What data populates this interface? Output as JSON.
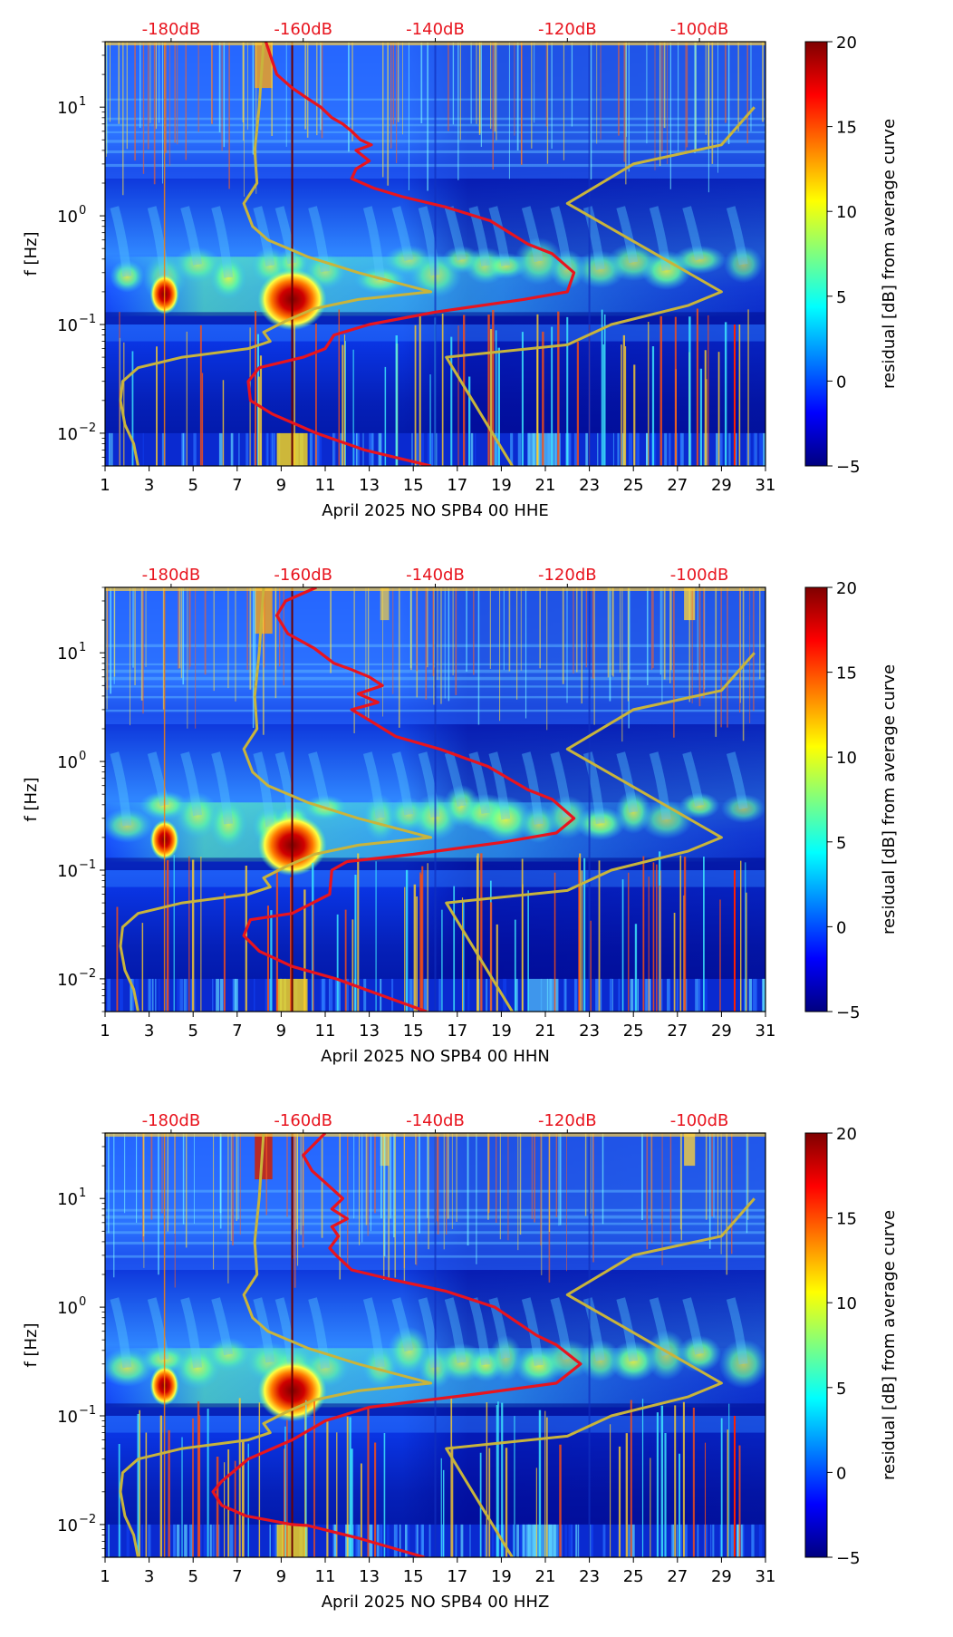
{
  "colors": {
    "spectrogram_low": "#00007f",
    "spectrogram_mid": "#1a5cff",
    "noise_model": "#c8b43c",
    "psd_curve": "#e8141e",
    "db_labels": "#e8141e",
    "hot": "#b40000"
  },
  "chart_data": [
    {
      "type": "heatmap",
      "xlabel": "April 2025 NO SPB4 00 HHE",
      "ylabel": "f [Hz]",
      "x_ticks": [
        "1",
        "3",
        "5",
        "7",
        "9",
        "11",
        "13",
        "15",
        "17",
        "19",
        "21",
        "23",
        "25",
        "27",
        "29",
        "31"
      ],
      "xlim": [
        1,
        31
      ],
      "y_ticks": [
        "10",
        "10",
        "10",
        "10"
      ],
      "y_tick_exponents": [
        "1",
        "0",
        "−1",
        "−2"
      ],
      "y_tick_values": [
        10,
        1,
        0.1,
        0.01
      ],
      "ylim": [
        0.005,
        40
      ],
      "db_axis": [
        "-180dB",
        "-160dB",
        "-140dB",
        "-120dB",
        "-100dB"
      ],
      "colorbar_label": "residual [dB] from average curve",
      "colorbar_ticks": [
        "20",
        "15",
        "10",
        "5",
        "0",
        "−5"
      ],
      "colorbar_range": [
        -5,
        20
      ],
      "red_curve_x": [
        8.3,
        8.8,
        9.5,
        10.2,
        10.8,
        11.3,
        11.8,
        12.2,
        12.6,
        13.1,
        12.4,
        13.0,
        12.4,
        12.2,
        13.2,
        14.5,
        16.5,
        18.5,
        20.2,
        21.3,
        22.3,
        22.0,
        20.0,
        16.0,
        13.0,
        11.4,
        11.0,
        10.0,
        8.0,
        7.5,
        7.6,
        8.6,
        10.6,
        12.8,
        15.8
      ],
      "red_curve_f": [
        40,
        20,
        15,
        12,
        10,
        8,
        7,
        6,
        5,
        4.5,
        4.0,
        3.2,
        2.7,
        2.2,
        1.8,
        1.5,
        1.2,
        0.9,
        0.55,
        0.45,
        0.3,
        0.2,
        0.17,
        0.13,
        0.1,
        0.08,
        0.06,
        0.05,
        0.04,
        0.03,
        0.02,
        0.015,
        0.01,
        0.007,
        0.005
      ],
      "noise_model_x": [
        2.5,
        2.3,
        1.9,
        1.7,
        1.8,
        2.5,
        4.5,
        7.5,
        8.5,
        8.2,
        9.3,
        10.5,
        12.5,
        15.8,
        12.5,
        10.2,
        8.4,
        7.7,
        7.3,
        7.9,
        7.8,
        8.0,
        8.2
      ],
      "noise_model_f": [
        0.005,
        0.008,
        0.012,
        0.02,
        0.03,
        0.04,
        0.05,
        0.06,
        0.07,
        0.085,
        0.11,
        0.14,
        0.17,
        0.2,
        0.3,
        0.42,
        0.6,
        0.8,
        1.3,
        2.0,
        4.0,
        10.0,
        40.0
      ],
      "noise_model2_x": [
        16.5,
        19.5,
        16.5,
        22.0,
        24.0,
        27.5,
        29.0,
        22.0,
        25.0,
        29.0,
        30.5
      ],
      "noise_model2_f": [
        0.05,
        0.005,
        0.05,
        0.065,
        0.1,
        0.15,
        0.2,
        1.3,
        3.0,
        4.5,
        10.0
      ]
    },
    {
      "type": "heatmap",
      "xlabel": "April 2025 NO SPB4 00 HHN",
      "ylabel": "f [Hz]",
      "x_ticks": [
        "1",
        "3",
        "5",
        "7",
        "9",
        "11",
        "13",
        "15",
        "17",
        "19",
        "21",
        "23",
        "25",
        "27",
        "29",
        "31"
      ],
      "xlim": [
        1,
        31
      ],
      "y_ticks": [
        "10",
        "10",
        "10",
        "10"
      ],
      "y_tick_exponents": [
        "1",
        "0",
        "−1",
        "−2"
      ],
      "y_tick_values": [
        10,
        1,
        0.1,
        0.01
      ],
      "ylim": [
        0.005,
        40
      ],
      "db_axis": [
        "-180dB",
        "-160dB",
        "-140dB",
        "-120dB",
        "-100dB"
      ],
      "colorbar_label": "residual [dB] from average curve",
      "colorbar_ticks": [
        "20",
        "15",
        "10",
        "5",
        "0",
        "−5"
      ],
      "colorbar_range": [
        -5,
        20
      ],
      "red_curve_x": [
        10.6,
        9.2,
        8.8,
        9.3,
        10.5,
        11.4,
        12.2,
        13.0,
        13.6,
        12.5,
        13.4,
        12.2,
        13.0,
        14.2,
        16.2,
        18.4,
        20.2,
        21.3,
        22.3,
        21.5,
        19.0,
        15.0,
        12.0,
        11.3,
        11.2,
        9.5,
        7.6,
        7.3,
        8.0,
        9.5,
        11.5,
        13.6,
        15.6
      ],
      "red_curve_f": [
        40,
        30,
        22,
        15,
        11,
        8,
        7,
        6,
        5,
        4.2,
        3.5,
        3.0,
        2.4,
        1.7,
        1.3,
        0.9,
        0.55,
        0.45,
        0.3,
        0.22,
        0.18,
        0.14,
        0.12,
        0.1,
        0.06,
        0.04,
        0.035,
        0.025,
        0.018,
        0.013,
        0.01,
        0.007,
        0.005
      ],
      "noise_model_x": [
        2.5,
        2.3,
        1.9,
        1.7,
        1.8,
        2.5,
        4.5,
        7.5,
        8.5,
        8.2,
        9.3,
        10.5,
        12.5,
        15.8,
        12.5,
        10.2,
        8.4,
        7.7,
        7.3,
        7.9,
        7.8,
        8.0,
        8.2
      ],
      "noise_model_f": [
        0.005,
        0.008,
        0.012,
        0.02,
        0.03,
        0.04,
        0.05,
        0.06,
        0.07,
        0.085,
        0.11,
        0.14,
        0.17,
        0.2,
        0.3,
        0.42,
        0.6,
        0.8,
        1.3,
        2.0,
        4.0,
        10.0,
        40.0
      ],
      "noise_model2_x": [
        16.5,
        19.5,
        16.5,
        22.0,
        24.0,
        27.5,
        29.0,
        22.0,
        25.0,
        29.0,
        30.5
      ],
      "noise_model2_f": [
        0.05,
        0.005,
        0.05,
        0.065,
        0.1,
        0.15,
        0.2,
        1.3,
        3.0,
        4.5,
        10.0
      ]
    },
    {
      "type": "heatmap",
      "xlabel": "April 2025 NO SPB4 00 HHZ",
      "ylabel": "f [Hz]",
      "x_ticks": [
        "1",
        "3",
        "5",
        "7",
        "9",
        "11",
        "13",
        "15",
        "17",
        "19",
        "21",
        "23",
        "25",
        "27",
        "29",
        "31"
      ],
      "xlim": [
        1,
        31
      ],
      "y_ticks": [
        "10",
        "10",
        "10",
        "10"
      ],
      "y_tick_exponents": [
        "1",
        "0",
        "−1",
        "−2"
      ],
      "y_tick_values": [
        10,
        1,
        0.1,
        0.01
      ],
      "ylim": [
        0.005,
        40
      ],
      "db_axis": [
        "-180dB",
        "-160dB",
        "-140dB",
        "-120dB",
        "-100dB"
      ],
      "colorbar_label": "residual [dB] from average curve",
      "colorbar_ticks": [
        "20",
        "15",
        "10",
        "5",
        "0",
        "−5"
      ],
      "colorbar_range": [
        -5,
        20
      ],
      "red_curve_x": [
        11.0,
        10.0,
        10.4,
        11.0,
        11.8,
        11.3,
        12.0,
        11.3,
        11.6,
        11.2,
        11.5,
        12.2,
        14.0,
        16.5,
        18.7,
        20.6,
        21.5,
        22.6,
        21.5,
        18.0,
        13.0,
        11.0,
        9.5,
        7.5,
        6.3,
        5.9,
        6.3,
        7.4,
        9.5,
        10.2,
        12.5,
        15.5
      ],
      "red_curve_f": [
        40,
        25,
        18,
        14,
        10,
        8,
        6.5,
        5.5,
        4.5,
        3.5,
        3.0,
        2.2,
        1.8,
        1.4,
        1.0,
        0.55,
        0.45,
        0.3,
        0.2,
        0.16,
        0.12,
        0.09,
        0.06,
        0.04,
        0.025,
        0.02,
        0.015,
        0.012,
        0.01,
        0.0098,
        0.0075,
        0.005
      ],
      "noise_model_x": [
        2.5,
        2.3,
        1.9,
        1.7,
        1.8,
        2.5,
        4.5,
        7.5,
        8.5,
        8.2,
        9.3,
        10.5,
        12.5,
        15.8,
        12.5,
        10.2,
        8.4,
        7.7,
        7.3,
        7.9,
        7.8,
        8.0,
        8.2
      ],
      "noise_model_f": [
        0.005,
        0.008,
        0.012,
        0.02,
        0.03,
        0.04,
        0.05,
        0.06,
        0.07,
        0.085,
        0.11,
        0.14,
        0.17,
        0.2,
        0.3,
        0.42,
        0.6,
        0.8,
        1.3,
        2.0,
        4.0,
        10.0,
        40.0
      ],
      "noise_model2_x": [
        16.5,
        19.5,
        16.5,
        22.0,
        24.0,
        27.5,
        29.0,
        22.0,
        25.0,
        29.0,
        30.5
      ],
      "noise_model2_f": [
        0.05,
        0.005,
        0.05,
        0.065,
        0.1,
        0.15,
        0.2,
        1.3,
        3.0,
        4.5,
        10.0
      ]
    }
  ]
}
